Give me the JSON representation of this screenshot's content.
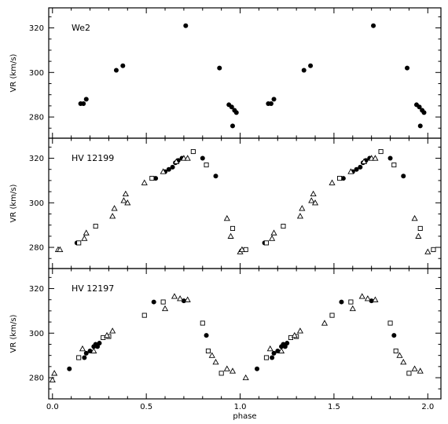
{
  "chart_data": [
    {
      "type": "scatter",
      "panel_label": "We2",
      "ylabel": "VR (km/s)",
      "xlabel": "",
      "xlim": [
        -0.02,
        2.07
      ],
      "ylim": [
        270.5,
        329
      ],
      "yticks": [
        280,
        300,
        320
      ],
      "xticks": [
        0,
        0.5,
        1,
        1.5,
        2
      ],
      "show_x_ticklabels": false,
      "series": [
        {
          "marker": "filled-circle",
          "points": [
            [
              0.15,
              286
            ],
            [
              0.165,
              286
            ],
            [
              0.18,
              288
            ],
            [
              0.34,
              301
            ],
            [
              0.375,
              303
            ],
            [
              0.71,
              321
            ],
            [
              0.89,
              302
            ],
            [
              0.94,
              285.5
            ],
            [
              0.955,
              284.5
            ],
            [
              0.96,
              276
            ],
            [
              0.97,
              283
            ],
            [
              0.98,
              282
            ],
            [
              1.15,
              286
            ],
            [
              1.165,
              286
            ],
            [
              1.18,
              288
            ],
            [
              1.34,
              301
            ],
            [
              1.375,
              303
            ],
            [
              1.71,
              321
            ],
            [
              1.89,
              302
            ],
            [
              1.94,
              285.5
            ],
            [
              1.955,
              284.5
            ],
            [
              1.96,
              276
            ],
            [
              1.97,
              283
            ],
            [
              1.98,
              282
            ]
          ]
        }
      ]
    },
    {
      "type": "scatter",
      "panel_label": "HV 12199",
      "ylabel": "VR (km/s)",
      "xlabel": "",
      "xlim": [
        -0.02,
        2.07
      ],
      "ylim": [
        270.5,
        329
      ],
      "yticks": [
        280,
        300,
        320
      ],
      "xticks": [
        0,
        0.5,
        1,
        1.5,
        2
      ],
      "show_x_ticklabels": false,
      "series": [
        {
          "marker": "filled-circle",
          "points": [
            [
              0.13,
              282
            ],
            [
              0.55,
              311
            ],
            [
              0.6,
              314
            ],
            [
              0.62,
              315
            ],
            [
              0.64,
              316
            ],
            [
              0.655,
              318
            ],
            [
              0.67,
              319
            ],
            [
              0.69,
              320
            ],
            [
              0.8,
              320
            ],
            [
              0.87,
              312
            ],
            [
              1.13,
              282
            ],
            [
              1.55,
              311
            ],
            [
              1.6,
              314
            ],
            [
              1.62,
              315
            ],
            [
              1.64,
              316
            ],
            [
              1.655,
              318
            ],
            [
              1.67,
              319
            ],
            [
              1.69,
              320
            ],
            [
              1.8,
              320
            ],
            [
              1.87,
              312
            ]
          ]
        },
        {
          "marker": "open-square",
          "points": [
            [
              0.14,
              282
            ],
            [
              0.23,
              289.5
            ],
            [
              0.53,
              311
            ],
            [
              0.75,
              323
            ],
            [
              0.82,
              317
            ],
            [
              0.96,
              288.5
            ],
            [
              1.03,
              279
            ],
            [
              1.14,
              282
            ],
            [
              1.23,
              289.5
            ],
            [
              1.53,
              311
            ],
            [
              1.75,
              323
            ],
            [
              1.82,
              317
            ],
            [
              1.96,
              288.5
            ],
            [
              2.03,
              279
            ]
          ]
        },
        {
          "marker": "open-triangle",
          "points": [
            [
              0.03,
              279
            ],
            [
              0.04,
              279
            ],
            [
              0.17,
              284
            ],
            [
              0.18,
              286.5
            ],
            [
              0.32,
              294
            ],
            [
              0.33,
              297.5
            ],
            [
              0.38,
              301
            ],
            [
              0.39,
              304
            ],
            [
              0.4,
              300
            ],
            [
              0.49,
              309
            ],
            [
              0.59,
              314
            ],
            [
              0.66,
              318.5
            ],
            [
              0.7,
              320
            ],
            [
              0.72,
              320
            ],
            [
              0.93,
              293
            ],
            [
              0.95,
              285
            ],
            [
              1.0,
              278
            ],
            [
              1.01,
              279
            ],
            [
              1.17,
              284
            ],
            [
              1.18,
              286.5
            ],
            [
              1.32,
              294
            ],
            [
              1.33,
              297.5
            ],
            [
              1.38,
              301
            ],
            [
              1.39,
              304
            ],
            [
              1.4,
              300
            ],
            [
              1.49,
              309
            ],
            [
              1.59,
              314
            ],
            [
              1.66,
              318.5
            ],
            [
              1.7,
              320
            ],
            [
              1.72,
              320
            ],
            [
              1.93,
              293
            ],
            [
              1.95,
              285
            ],
            [
              2.0,
              278
            ]
          ]
        }
      ]
    },
    {
      "type": "scatter",
      "panel_label": "HV 12197",
      "ylabel": "VR (km/s)",
      "xlabel": "phase",
      "xlim": [
        -0.02,
        2.07
      ],
      "ylim": [
        270.5,
        329
      ],
      "yticks": [
        280,
        300,
        320
      ],
      "xticks": [
        0,
        0.5,
        1,
        1.5,
        2
      ],
      "xticklabels": [
        "0.0",
        "0.5",
        "1.0",
        "1.5",
        "2.0"
      ],
      "show_x_ticklabels": true,
      "series": [
        {
          "marker": "filled-circle",
          "points": [
            [
              0.09,
              284
            ],
            [
              0.17,
              289
            ],
            [
              0.18,
              291
            ],
            [
              0.2,
              292
            ],
            [
              0.22,
              294
            ],
            [
              0.23,
              295
            ],
            [
              0.24,
              294
            ],
            [
              0.25,
              295.5
            ],
            [
              0.54,
              314
            ],
            [
              0.7,
              314.5
            ],
            [
              0.82,
              299
            ],
            [
              1.09,
              284
            ],
            [
              1.17,
              289
            ],
            [
              1.18,
              291
            ],
            [
              1.2,
              292
            ],
            [
              1.22,
              294
            ],
            [
              1.23,
              295
            ],
            [
              1.24,
              294
            ],
            [
              1.25,
              295.5
            ],
            [
              1.54,
              314
            ],
            [
              1.7,
              314.5
            ],
            [
              1.82,
              299
            ]
          ]
        },
        {
          "marker": "open-square",
          "points": [
            [
              0.14,
              289
            ],
            [
              0.27,
              298
            ],
            [
              0.3,
              298.5
            ],
            [
              0.49,
              308
            ],
            [
              0.59,
              314
            ],
            [
              0.8,
              304.5
            ],
            [
              0.83,
              292
            ],
            [
              0.9,
              282
            ],
            [
              1.14,
              289
            ],
            [
              1.27,
              298
            ],
            [
              1.3,
              298.5
            ],
            [
              1.49,
              308
            ],
            [
              1.59,
              314
            ],
            [
              1.8,
              304.5
            ],
            [
              1.83,
              292
            ],
            [
              1.9,
              282
            ]
          ]
        },
        {
          "marker": "open-triangle",
          "points": [
            [
              0.0,
              279
            ],
            [
              0.01,
              282
            ],
            [
              0.16,
              293
            ],
            [
              0.22,
              292
            ],
            [
              0.29,
              299
            ],
            [
              0.32,
              301
            ],
            [
              0.6,
              311
            ],
            [
              0.65,
              316.5
            ],
            [
              0.68,
              315.5
            ],
            [
              0.72,
              315
            ],
            [
              0.85,
              290
            ],
            [
              0.87,
              287
            ],
            [
              0.93,
              284
            ],
            [
              0.96,
              283
            ],
            [
              1.03,
              280
            ],
            [
              1.16,
              293
            ],
            [
              1.22,
              292
            ],
            [
              1.29,
              299
            ],
            [
              1.32,
              301
            ],
            [
              1.45,
              304.5
            ],
            [
              1.6,
              311
            ],
            [
              1.65,
              316.5
            ],
            [
              1.68,
              315.5
            ],
            [
              1.72,
              315
            ],
            [
              1.85,
              290
            ],
            [
              1.87,
              287
            ],
            [
              1.93,
              284
            ],
            [
              1.96,
              283
            ]
          ]
        }
      ]
    }
  ]
}
